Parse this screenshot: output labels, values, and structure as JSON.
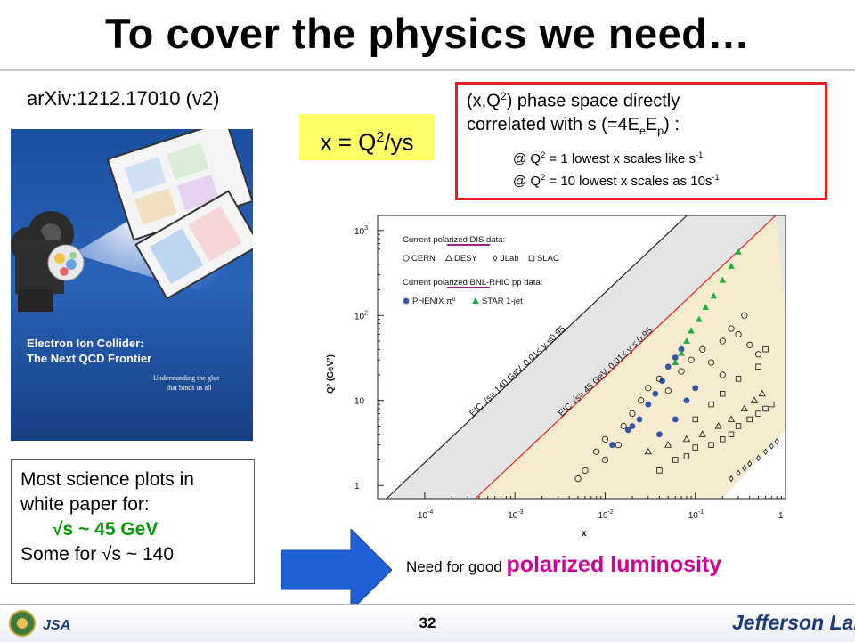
{
  "slide": {
    "title": "To cover the physics we need…",
    "arxiv": "arXiv:1212.17010 (v2)",
    "formula": {
      "lhs": "x = Q",
      "exp": "2",
      "rhs": "/ys"
    },
    "redbox": {
      "line1_a": "(x,Q",
      "line1_exp": "2",
      "line1_b": ") phase space directly",
      "line2_a": "correlated with s (=4E",
      "line2_sub1": "e",
      "line2_mid": "E",
      "line2_sub2": "p",
      "line2_b": ") :",
      "line3_a": "@ Q",
      "line3_exp": "2",
      "line3_b": " = 1   lowest x scales like s",
      "line3_exp2": "-1",
      "line4_a": "@ Q",
      "line4_exp": "2",
      "line4_b": " = 10 lowest x scales as 10s",
      "line4_exp2": "-1"
    },
    "science_box": {
      "line1": "Most science plots in",
      "line2": "white paper for:",
      "line3": "√s ~   45 GeV",
      "line4": "Some for √s ~ 140"
    },
    "luminosity": {
      "prefix": "Need for good ",
      "emphasis": "polarized luminosity"
    },
    "page_number": "32",
    "footer_brand": "Jefferson Lab",
    "footer_logo_text": "JSA"
  },
  "cover": {
    "title_line1": "Electron Ion Collider:",
    "title_line2": "The Next QCD Frontier",
    "subtitle_line1": "Understanding the glue",
    "subtitle_line2": "that binds us all"
  },
  "chart_data": {
    "type": "scatter",
    "xlabel": "x",
    "ylabel": "Q² (GeV²)",
    "log_x": true,
    "log_y": true,
    "xlim": [
      3e-05,
      1
    ],
    "ylim": [
      0.7,
      1500
    ],
    "x_ticks": [
      {
        "v": 0.0001,
        "b": "10",
        "e": "-4"
      },
      {
        "v": 0.001,
        "b": "10",
        "e": "-3"
      },
      {
        "v": 0.01,
        "b": "10",
        "e": "-2"
      },
      {
        "v": 0.1,
        "b": "10",
        "e": "-1"
      },
      {
        "v": 1,
        "b": "1",
        "e": ""
      }
    ],
    "y_ticks": [
      {
        "v": 1,
        "b": "1",
        "e": ""
      },
      {
        "v": 10,
        "b": "10",
        "e": ""
      },
      {
        "v": 100,
        "b": "10",
        "e": "2"
      },
      {
        "v": 1000,
        "b": "10",
        "e": "3"
      }
    ],
    "legend": {
      "header1": "Current polarized DIS data:",
      "dis_items": [
        "CERN",
        "DESY",
        "JLab",
        "SLAC"
      ],
      "header2": "Current polarized BNL-RHIC pp data:",
      "pp_items": [
        "PHENIX π⁰",
        "STAR 1-jet"
      ]
    },
    "boundaries": [
      {
        "label": "EIC √s= 140 GeV, 0.01≤ y ≤0.95",
        "sqrt_s": 140,
        "color": "#222222"
      },
      {
        "label": "EIC √s= 45 GeV, 0.01≤ y ≤ 0.95",
        "sqrt_s": 45,
        "color": "#e02020"
      }
    ],
    "series": [
      {
        "name": "PHENIX π⁰",
        "marker": "filled-circle",
        "color": "#3355aa",
        "points": [
          [
            0.02,
            5
          ],
          [
            0.024,
            6
          ],
          [
            0.03,
            9
          ],
          [
            0.036,
            12
          ],
          [
            0.043,
            17
          ],
          [
            0.05,
            25
          ],
          [
            0.06,
            32
          ],
          [
            0.07,
            40
          ],
          [
            0.012,
            3
          ],
          [
            0.018,
            4.5
          ],
          [
            0.04,
            4
          ],
          [
            0.06,
            6
          ],
          [
            0.08,
            10
          ],
          [
            0.1,
            14
          ]
        ]
      },
      {
        "name": "STAR 1-jet",
        "marker": "filled-triangle",
        "color": "#22aa44",
        "points": [
          [
            0.06,
            28
          ],
          [
            0.07,
            36
          ],
          [
            0.08,
            50
          ],
          [
            0.09,
            66
          ],
          [
            0.11,
            90
          ],
          [
            0.13,
            125
          ],
          [
            0.16,
            170
          ],
          [
            0.2,
            260
          ],
          [
            0.25,
            380
          ],
          [
            0.3,
            560
          ]
        ]
      },
      {
        "name": "CERN",
        "marker": "open-circle",
        "color": "#111111",
        "points": [
          [
            0.006,
            1.5
          ],
          [
            0.008,
            2.5
          ],
          [
            0.01,
            3.5
          ],
          [
            0.014,
            3
          ],
          [
            0.016,
            5
          ],
          [
            0.02,
            7
          ],
          [
            0.025,
            10
          ],
          [
            0.03,
            14
          ],
          [
            0.04,
            18
          ],
          [
            0.05,
            13
          ],
          [
            0.07,
            22
          ],
          [
            0.09,
            30
          ],
          [
            0.12,
            40
          ],
          [
            0.15,
            28
          ],
          [
            0.2,
            50
          ],
          [
            0.25,
            70
          ],
          [
            0.3,
            60
          ],
          [
            0.4,
            45
          ],
          [
            0.5,
            35
          ],
          [
            0.005,
            1.2
          ],
          [
            0.01,
            2
          ],
          [
            0.2,
            20
          ],
          [
            0.35,
            100
          ]
        ]
      },
      {
        "name": "DESY",
        "marker": "open-triangle",
        "color": "#111111",
        "points": [
          [
            0.03,
            2.5
          ],
          [
            0.05,
            3
          ],
          [
            0.08,
            3.5
          ],
          [
            0.12,
            4
          ],
          [
            0.18,
            5
          ],
          [
            0.25,
            6
          ],
          [
            0.35,
            8
          ],
          [
            0.45,
            10
          ],
          [
            0.55,
            12
          ]
        ]
      },
      {
        "name": "JLab",
        "marker": "open-diamond",
        "color": "#111111",
        "points": [
          [
            0.25,
            1.2
          ],
          [
            0.3,
            1.4
          ],
          [
            0.35,
            1.6
          ],
          [
            0.4,
            1.8
          ],
          [
            0.5,
            2.1
          ],
          [
            0.6,
            2.5
          ],
          [
            0.7,
            2.9
          ],
          [
            0.8,
            3.3
          ]
        ]
      },
      {
        "name": "SLAC",
        "marker": "open-square",
        "color": "#111111",
        "points": [
          [
            0.04,
            1.5
          ],
          [
            0.06,
            2
          ],
          [
            0.08,
            2.2
          ],
          [
            0.1,
            2.8
          ],
          [
            0.15,
            3
          ],
          [
            0.2,
            3.5
          ],
          [
            0.25,
            4
          ],
          [
            0.3,
            5
          ],
          [
            0.4,
            6
          ],
          [
            0.5,
            7
          ],
          [
            0.6,
            8
          ],
          [
            0.7,
            9
          ],
          [
            0.1,
            6
          ],
          [
            0.2,
            12
          ],
          [
            0.3,
            18
          ],
          [
            0.5,
            25
          ],
          [
            0.6,
            40
          ],
          [
            0.15,
            9
          ]
        ]
      }
    ]
  }
}
